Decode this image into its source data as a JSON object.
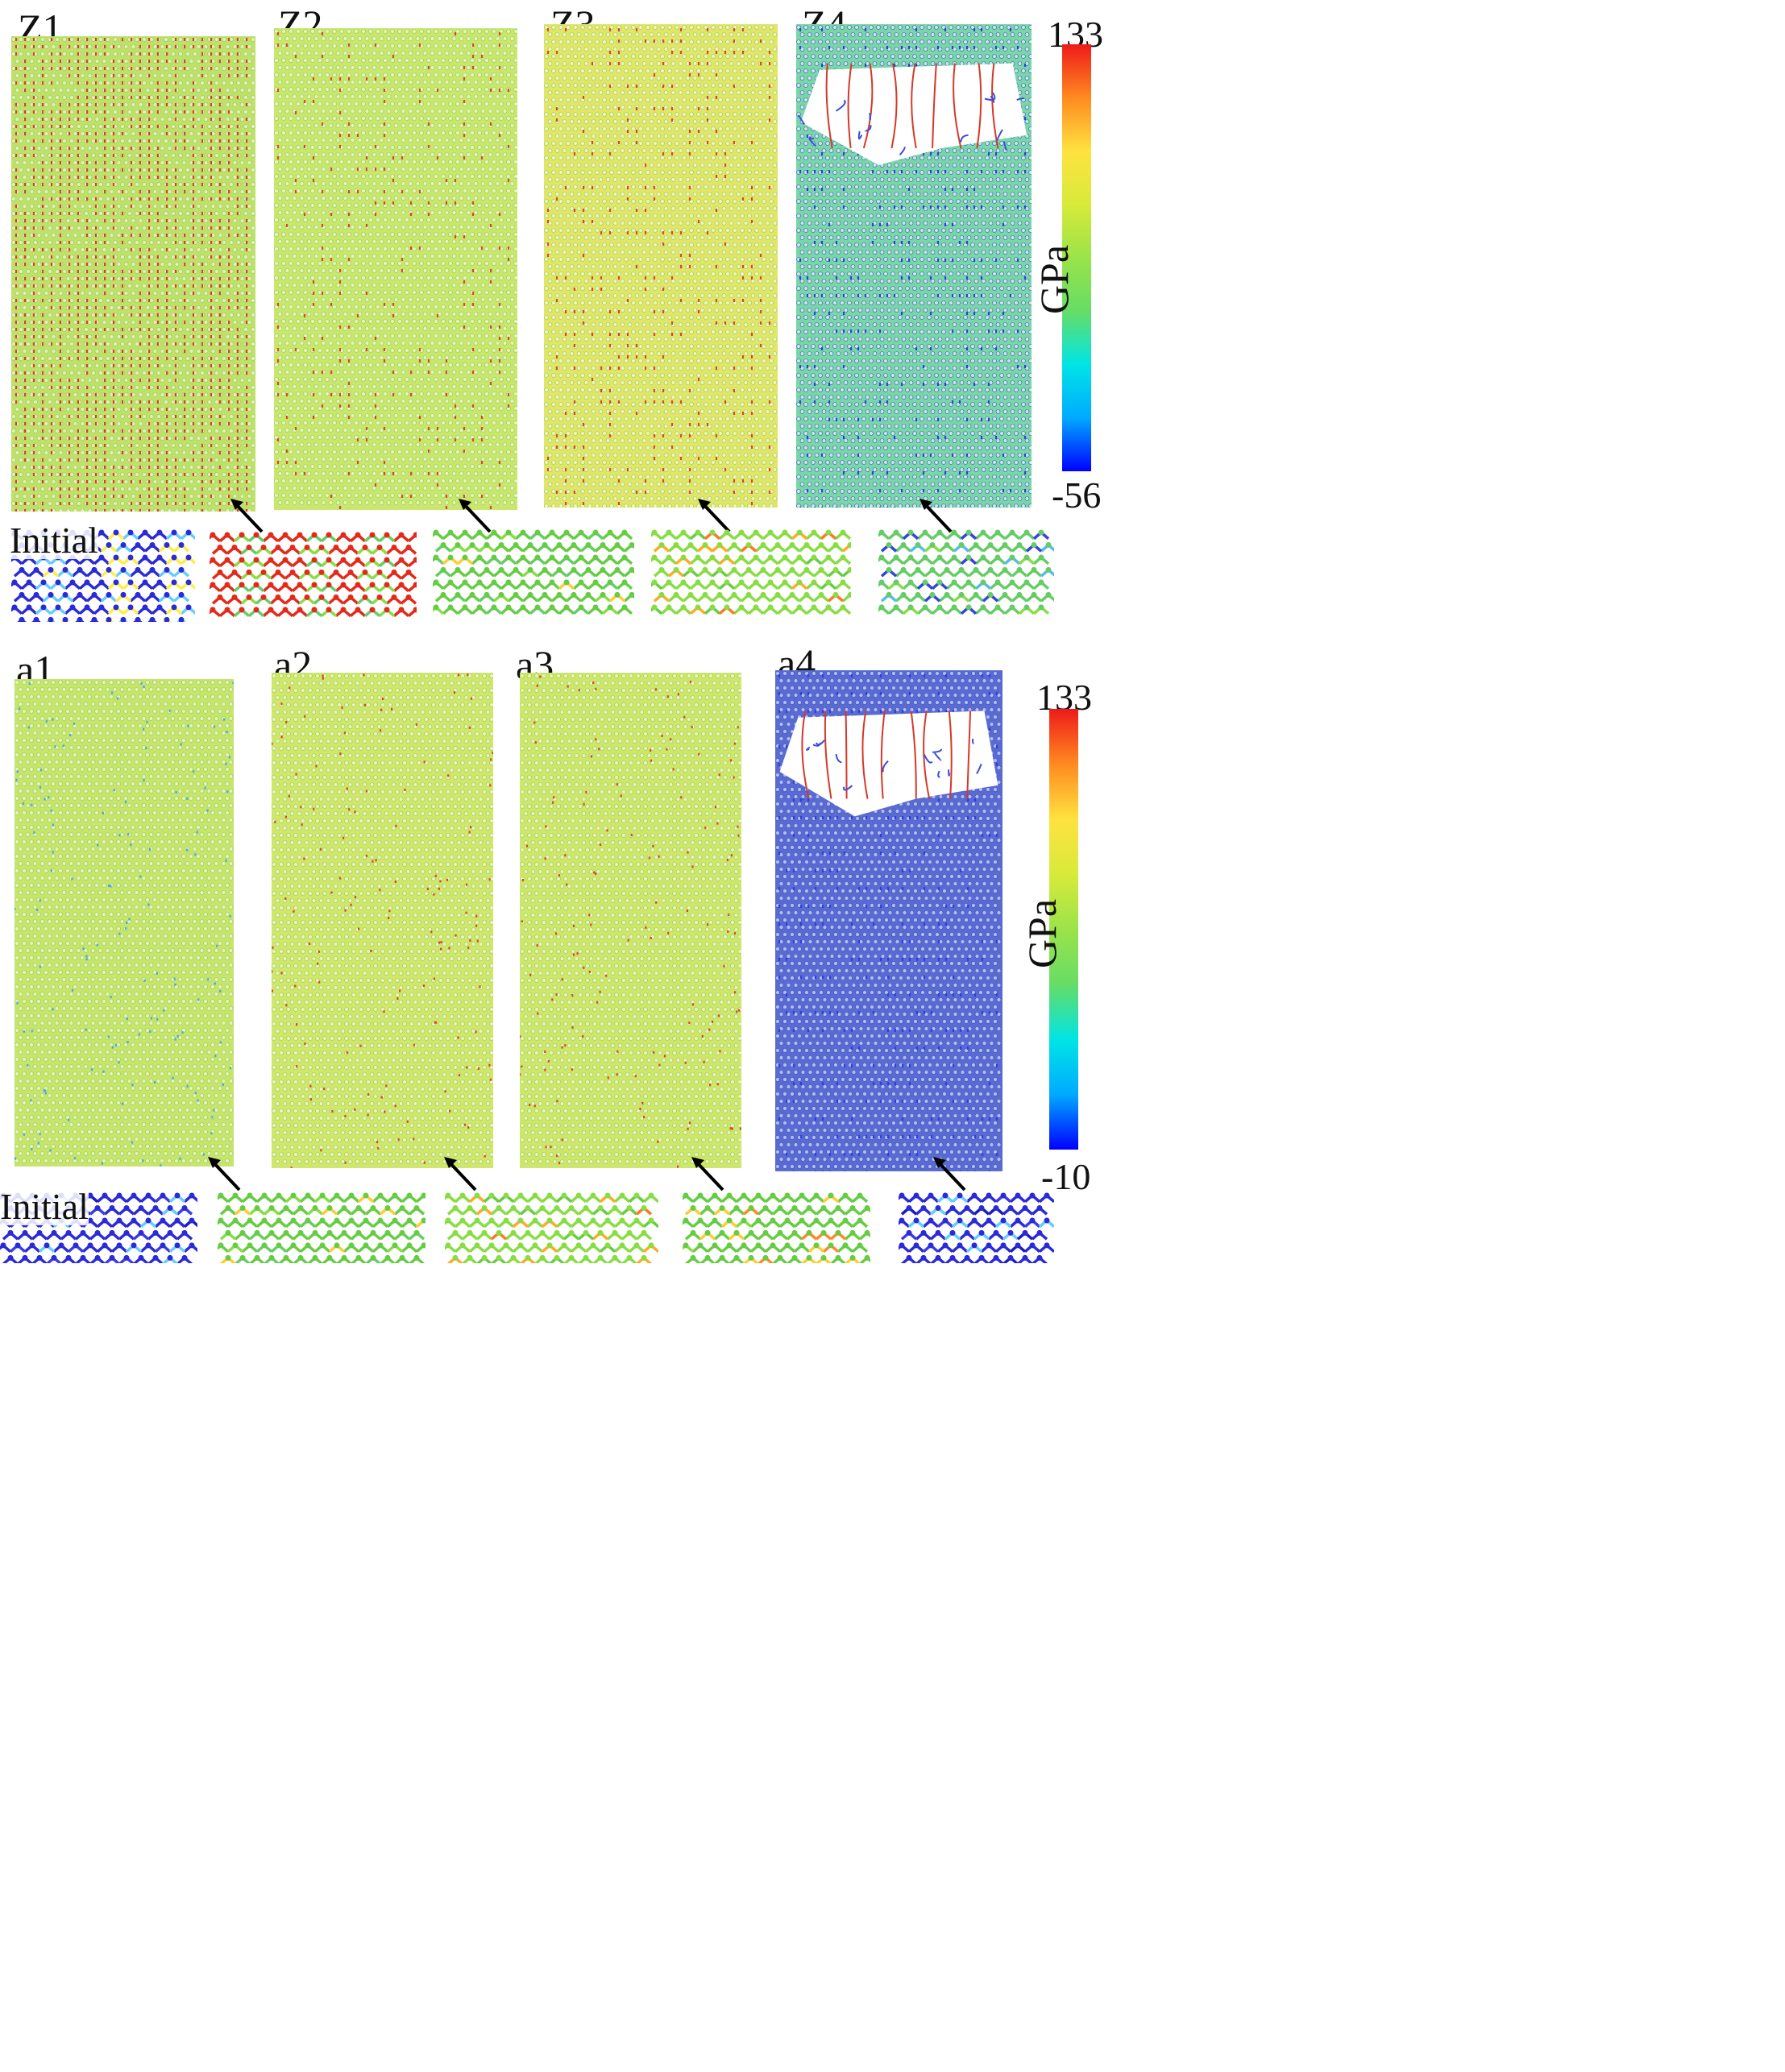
{
  "colors": {
    "stops": [
      "#0000ff",
      "#00aaff",
      "#00e5e5",
      "#66dd66",
      "#9be34a",
      "#d8ea3a",
      "#ffe240",
      "#ff8a20",
      "#ee1a1a"
    ]
  },
  "sections": [
    {
      "id": "zigzag",
      "panels": [
        {
          "label": "Z1",
          "pattern": "zigzag-red-lines",
          "base": "#bfe06a",
          "accent": "#e33a2a"
        },
        {
          "label": "Z2",
          "pattern": "scattered-red",
          "base": "#c9e66e",
          "accent": "#d9472e"
        },
        {
          "label": "Z3",
          "pattern": "yellow-red",
          "base": "#e1e66a",
          "accent": "#d9472e"
        },
        {
          "label": "Z4",
          "pattern": "fractured-blue",
          "base": "#7ad6a6",
          "accent": "#2c3fe0"
        }
      ],
      "insets": [
        {
          "label": "Initial",
          "pattern": "blue-stripes"
        },
        {
          "label": "",
          "pattern": "red-stripes"
        },
        {
          "label": "",
          "pattern": "green"
        },
        {
          "label": "",
          "pattern": "green-orange"
        },
        {
          "label": "",
          "pattern": "green-blue"
        }
      ],
      "colorbar": {
        "max": "133",
        "min": "-56",
        "unit": "GPa"
      }
    },
    {
      "id": "armchair",
      "panels": [
        {
          "label": "a1",
          "pattern": "uniform",
          "base": "#c7e46c",
          "accent": "#49a6e6"
        },
        {
          "label": "a2",
          "pattern": "uniform",
          "base": "#d0e66c",
          "accent": "#d9472e"
        },
        {
          "label": "a3",
          "pattern": "uniform",
          "base": "#cfe66c",
          "accent": "#d9472e"
        },
        {
          "label": "a4",
          "pattern": "fractured-blue",
          "base": "#5a6bd0",
          "accent": "#2c3fe0"
        }
      ],
      "insets": [
        {
          "label": "Initial",
          "pattern": "blue-dense"
        },
        {
          "label": "",
          "pattern": "green"
        },
        {
          "label": "",
          "pattern": "green-orange"
        },
        {
          "label": "",
          "pattern": "green-orange2"
        },
        {
          "label": "",
          "pattern": "blue-dense"
        }
      ],
      "colorbar": {
        "max": "133",
        "min": "-10",
        "unit": "GPa"
      }
    }
  ]
}
